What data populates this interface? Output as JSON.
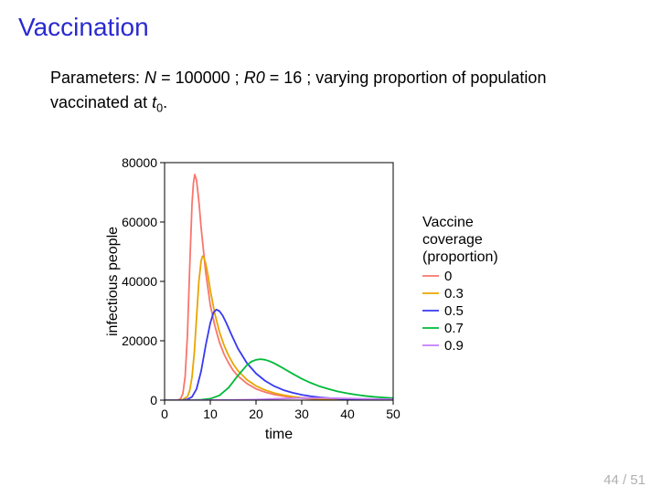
{
  "title": "Vaccination",
  "params": {
    "prefix": "Parameters: ",
    "N_label": "N",
    "N_value": "100000",
    "R0_label": "R",
    "R0_sub": "0",
    "R0_value": "16",
    "tail": "; varying proportion of population vaccinated at ",
    "t_label": "t",
    "t_sub": "0",
    "period": "."
  },
  "chart": {
    "type": "line",
    "xlabel": "time",
    "ylabel": "infectious people",
    "xlim": [
      0,
      50
    ],
    "ylim": [
      0,
      80000
    ],
    "xticks": [
      0,
      10,
      20,
      30,
      40,
      50
    ],
    "yticks": [
      0,
      20000,
      40000,
      60000,
      80000
    ],
    "panel_border_color": "#000000",
    "panel_bg": "#ffffff",
    "label_fontsize": 16,
    "tick_fontsize": 14,
    "line_width": 1.8,
    "series": [
      {
        "label": "0",
        "color": "#f8766d",
        "points": [
          [
            0,
            1
          ],
          [
            1,
            3
          ],
          [
            2,
            15
          ],
          [
            3,
            120
          ],
          [
            3.5,
            500
          ],
          [
            4,
            2200
          ],
          [
            4.5,
            8000
          ],
          [
            5,
            22000
          ],
          [
            5.5,
            45000
          ],
          [
            6,
            66000
          ],
          [
            6.3,
            73000
          ],
          [
            6.6,
            76000
          ],
          [
            7,
            74000
          ],
          [
            7.5,
            67000
          ],
          [
            8,
            58000
          ],
          [
            9,
            43000
          ],
          [
            10,
            32000
          ],
          [
            11,
            25000
          ],
          [
            12,
            19500
          ],
          [
            13,
            15500
          ],
          [
            14,
            12500
          ],
          [
            15,
            10000
          ],
          [
            16,
            8200
          ],
          [
            18,
            5600
          ],
          [
            20,
            3800
          ],
          [
            22,
            2700
          ],
          [
            24,
            1900
          ],
          [
            26,
            1350
          ],
          [
            28,
            950
          ],
          [
            30,
            680
          ],
          [
            32,
            480
          ],
          [
            34,
            340
          ],
          [
            36,
            240
          ],
          [
            38,
            170
          ],
          [
            40,
            120
          ],
          [
            42,
            85
          ],
          [
            44,
            60
          ],
          [
            46,
            42
          ],
          [
            48,
            30
          ],
          [
            50,
            20
          ]
        ]
      },
      {
        "label": "0.3",
        "color": "#e9a500",
        "points": [
          [
            0,
            1
          ],
          [
            1,
            2
          ],
          [
            2,
            8
          ],
          [
            3,
            40
          ],
          [
            4,
            220
          ],
          [
            5,
            1200
          ],
          [
            5.5,
            3200
          ],
          [
            6,
            7800
          ],
          [
            6.5,
            16000
          ],
          [
            7,
            28000
          ],
          [
            7.5,
            40000
          ],
          [
            8,
            47000
          ],
          [
            8.3,
            48500
          ],
          [
            8.6,
            48000
          ],
          [
            9,
            46000
          ],
          [
            9.5,
            42000
          ],
          [
            10,
            37000
          ],
          [
            11,
            29000
          ],
          [
            12,
            23000
          ],
          [
            13,
            18500
          ],
          [
            14,
            15000
          ],
          [
            15,
            12200
          ],
          [
            16,
            10000
          ],
          [
            18,
            6900
          ],
          [
            20,
            4800
          ],
          [
            22,
            3400
          ],
          [
            24,
            2400
          ],
          [
            26,
            1700
          ],
          [
            28,
            1200
          ],
          [
            30,
            850
          ],
          [
            32,
            600
          ],
          [
            34,
            420
          ],
          [
            36,
            300
          ],
          [
            38,
            210
          ],
          [
            40,
            150
          ],
          [
            42,
            110
          ],
          [
            44,
            78
          ],
          [
            46,
            55
          ],
          [
            48,
            39
          ],
          [
            50,
            28
          ]
        ]
      },
      {
        "label": "0.5",
        "color": "#3639f2",
        "points": [
          [
            0,
            1
          ],
          [
            1,
            2
          ],
          [
            2,
            5
          ],
          [
            3,
            18
          ],
          [
            4,
            70
          ],
          [
            5,
            280
          ],
          [
            6,
            1100
          ],
          [
            7,
            3800
          ],
          [
            8,
            9800
          ],
          [
            9,
            18500
          ],
          [
            10,
            26000
          ],
          [
            10.7,
            29500
          ],
          [
            11.3,
            30500
          ],
          [
            12,
            30000
          ],
          [
            12.7,
            28500
          ],
          [
            13.5,
            26000
          ],
          [
            14.5,
            22500
          ],
          [
            16,
            17500
          ],
          [
            18,
            12500
          ],
          [
            20,
            9000
          ],
          [
            22,
            6500
          ],
          [
            24,
            4700
          ],
          [
            26,
            3400
          ],
          [
            28,
            2500
          ],
          [
            30,
            1800
          ],
          [
            32,
            1300
          ],
          [
            34,
            950
          ],
          [
            36,
            690
          ],
          [
            38,
            500
          ],
          [
            40,
            360
          ],
          [
            42,
            260
          ],
          [
            44,
            190
          ],
          [
            46,
            140
          ],
          [
            48,
            100
          ],
          [
            50,
            72
          ]
        ]
      },
      {
        "label": "0.7",
        "color": "#00b939",
        "points": [
          [
            0,
            1
          ],
          [
            2,
            3
          ],
          [
            4,
            10
          ],
          [
            6,
            35
          ],
          [
            8,
            130
          ],
          [
            10,
            480
          ],
          [
            12,
            1600
          ],
          [
            14,
            4200
          ],
          [
            16,
            8200
          ],
          [
            18,
            11800
          ],
          [
            19,
            13000
          ],
          [
            20,
            13600
          ],
          [
            21,
            13800
          ],
          [
            22,
            13600
          ],
          [
            23,
            13100
          ],
          [
            24,
            12400
          ],
          [
            26,
            10700
          ],
          [
            28,
            8900
          ],
          [
            30,
            7200
          ],
          [
            32,
            5800
          ],
          [
            34,
            4600
          ],
          [
            36,
            3700
          ],
          [
            38,
            2900
          ],
          [
            40,
            2300
          ],
          [
            42,
            1800
          ],
          [
            44,
            1400
          ],
          [
            46,
            1100
          ],
          [
            48,
            870
          ],
          [
            50,
            680
          ]
        ]
      },
      {
        "label": "0.9",
        "color": "#c77cff",
        "points": [
          [
            0,
            1
          ],
          [
            5,
            4
          ],
          [
            10,
            15
          ],
          [
            15,
            60
          ],
          [
            20,
            200
          ],
          [
            25,
            480
          ],
          [
            28,
            650
          ],
          [
            30,
            720
          ],
          [
            32,
            740
          ],
          [
            34,
            720
          ],
          [
            36,
            680
          ],
          [
            40,
            560
          ],
          [
            44,
            440
          ],
          [
            48,
            340
          ],
          [
            50,
            300
          ]
        ]
      }
    ],
    "legend": {
      "title_lines": [
        "Vaccine",
        "coverage",
        "(proportion)"
      ],
      "title_fontsize": 16,
      "item_fontsize": 15,
      "key_line_length": 18,
      "key_line_width": 1.8
    }
  },
  "pagenum": "44 / 51"
}
